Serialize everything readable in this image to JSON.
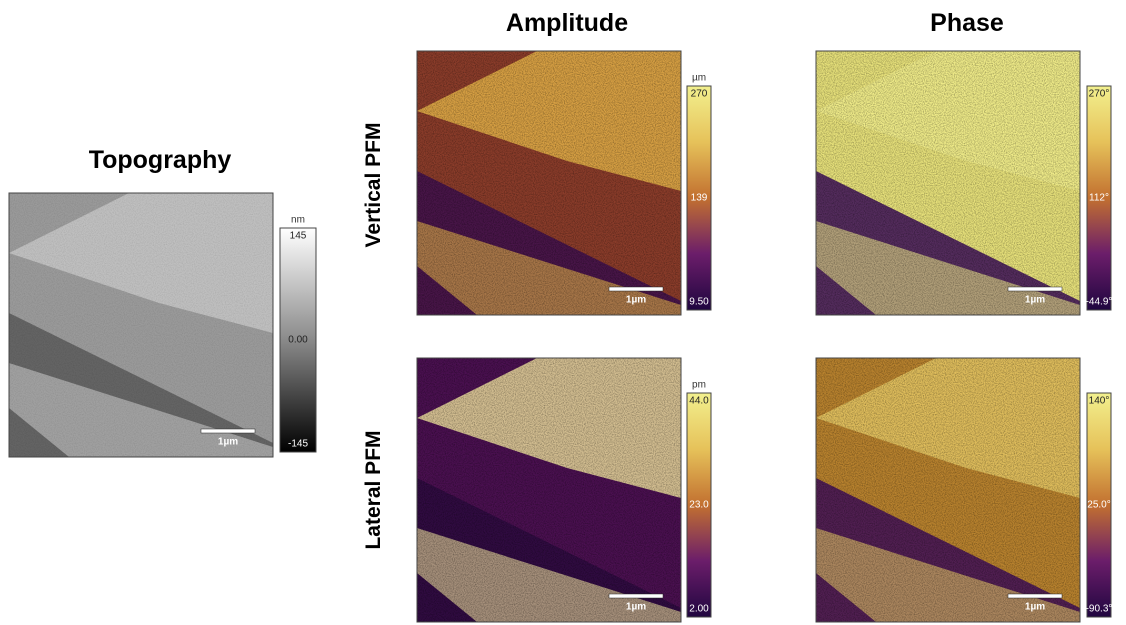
{
  "titles": {
    "topography": "Topography",
    "amplitude": "Amplitude",
    "phase": "Phase"
  },
  "rows": [
    "Vertical PFM",
    "Lateral PFM"
  ],
  "panels": [
    {
      "unit": "nm",
      "max": "145",
      "mid": "0.00",
      "min": "-145",
      "scale_bar": "1µm"
    },
    {
      "unit": "µm",
      "max": "270",
      "mid": "139",
      "min": "9.50",
      "scale_bar": "1µm"
    },
    {
      "max": "270°",
      "mid": "112°",
      "min": "-44.9°",
      "scale_bar": "1µm"
    },
    {
      "unit": "pm",
      "max": "44.0",
      "mid": "23.0",
      "min": "2.00",
      "scale_bar": "1µm"
    },
    {
      "max": "140°",
      "mid": "25.0°",
      "min": "-90.3°",
      "scale_bar": "1µm"
    }
  ]
}
